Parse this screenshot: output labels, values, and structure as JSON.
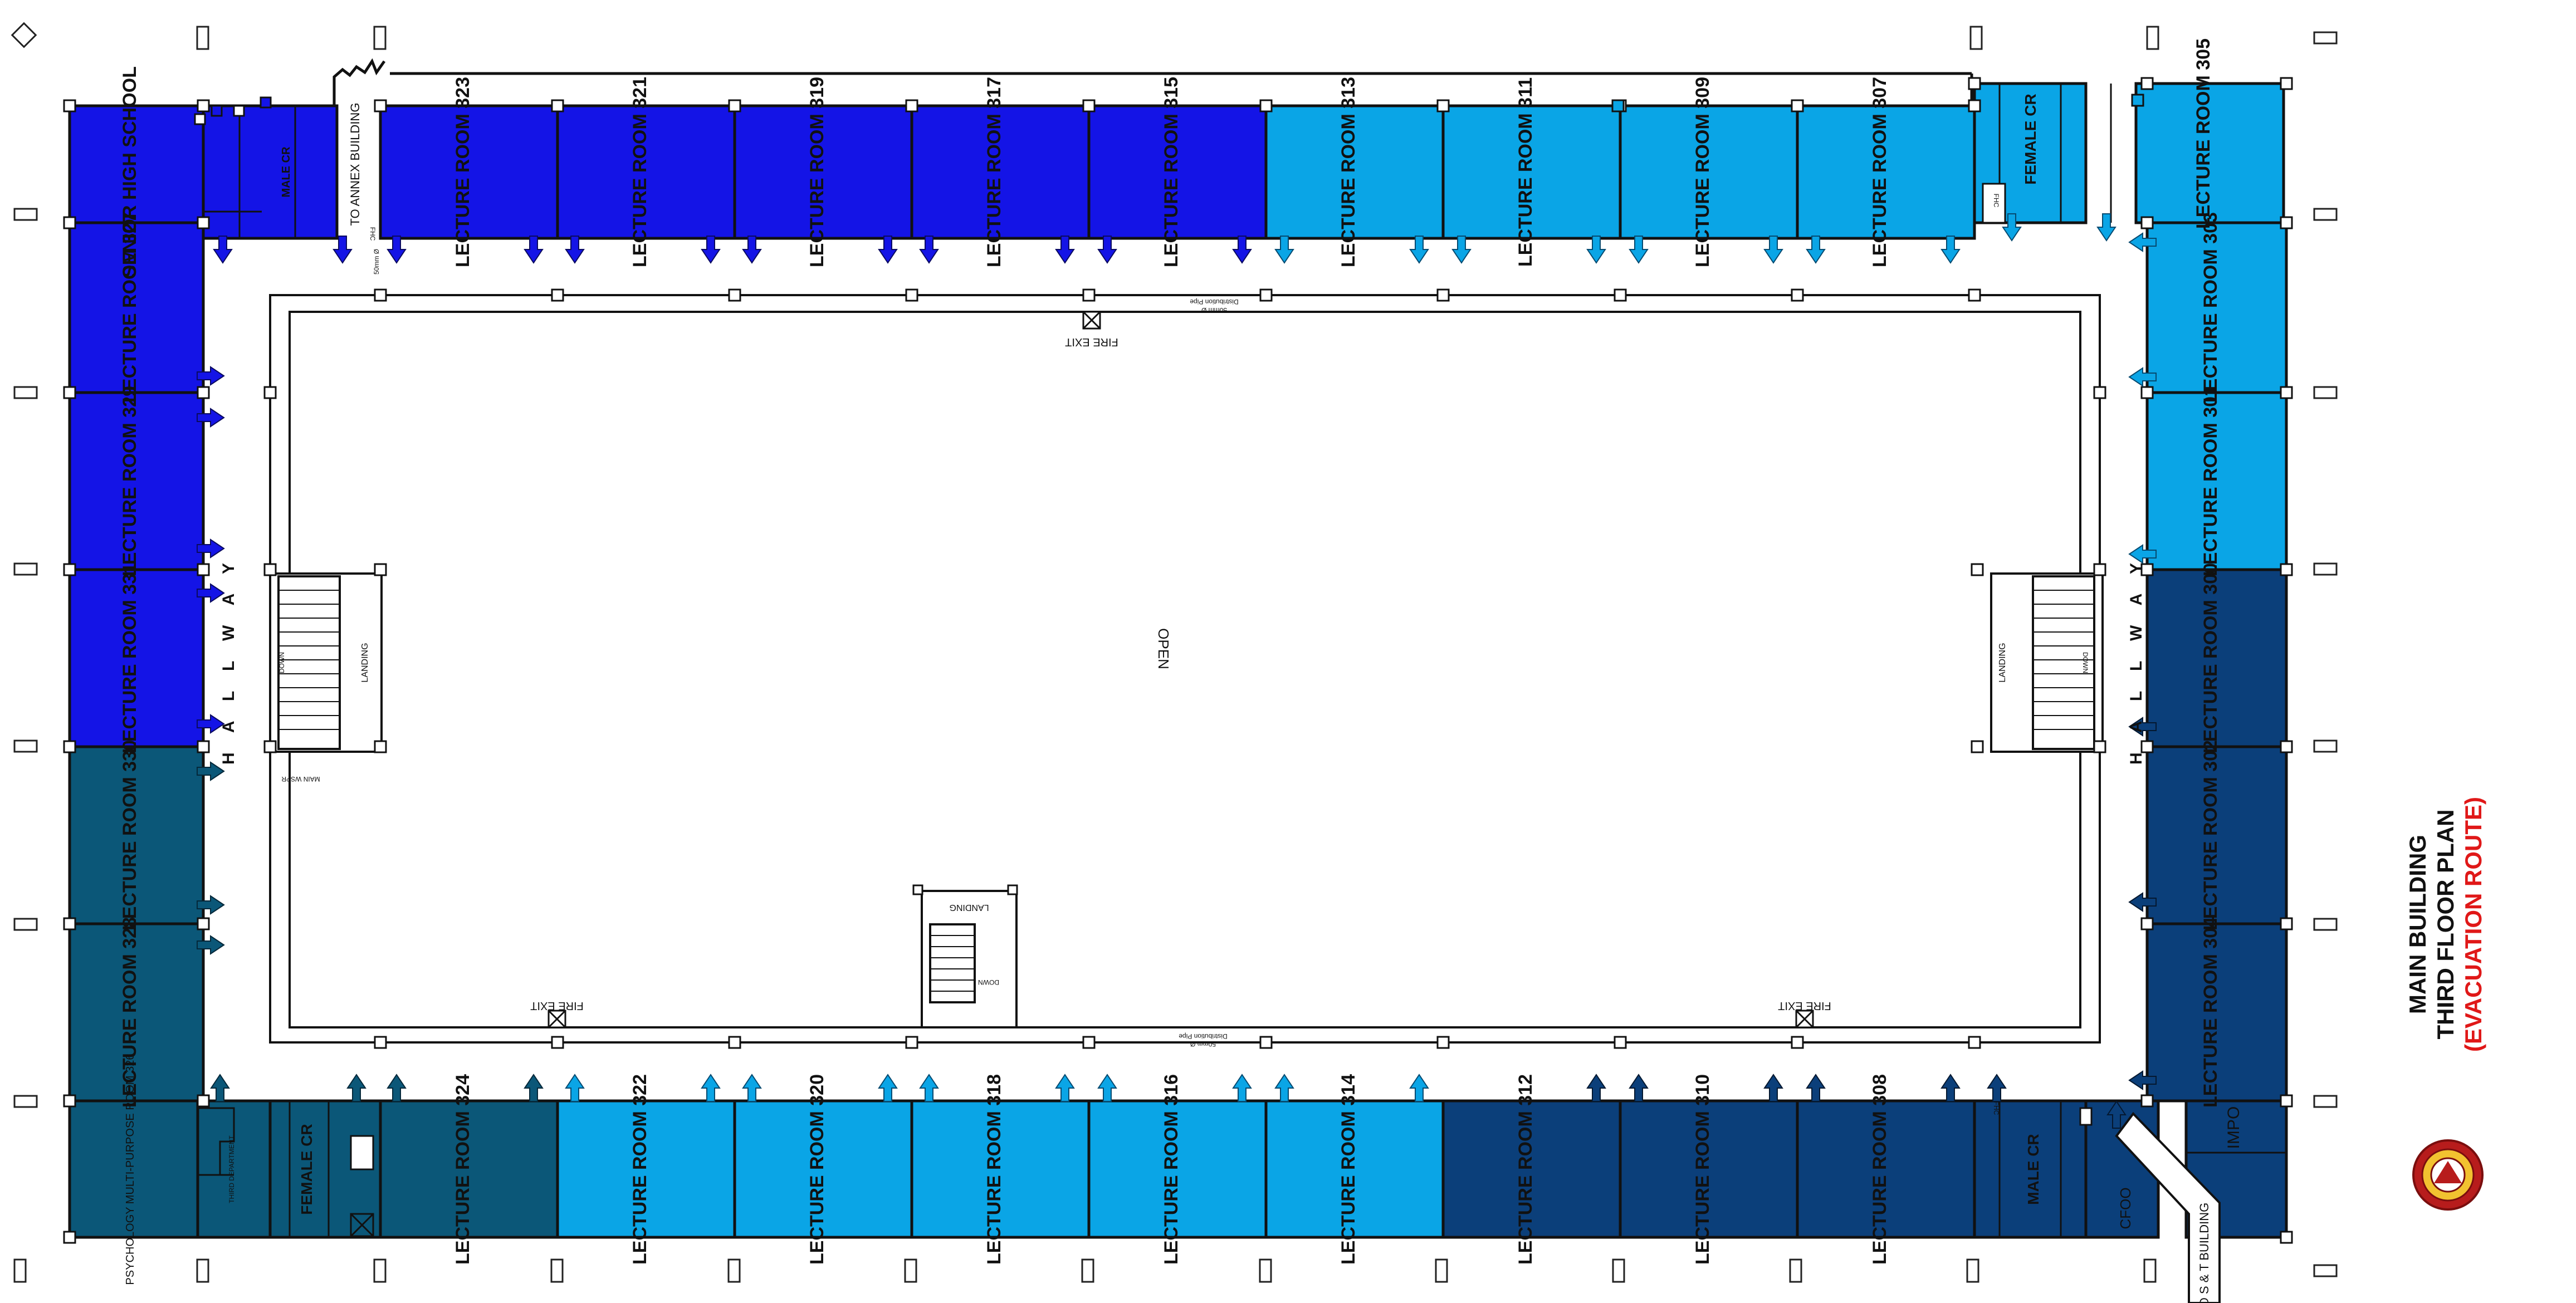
{
  "title": {
    "line1": "MAIN  BUILDING",
    "line2": "THIRD FLOOR PLAN",
    "line3": "(EVACUATION ROUTE)"
  },
  "colors": {
    "zone_a": "#1414e6",
    "zone_b": "#0aa5e6",
    "zone_c": "#0b3f7a",
    "zone_d": "#0b5778",
    "title_red": "#e01818",
    "seal_outer": "#b71c1c",
    "seal_inner": "#f2c230"
  },
  "labels": {
    "open": "OPEN",
    "hallway_west": "H A L L W A Y",
    "hallway_east": "H A L L W A Y",
    "to_annex": "TO ANNEX BUILDING",
    "to_st": "TO S & T BUILDING",
    "fire_exit_north": "FIRE EXIT",
    "fire_exit_sw": "FIRE EXIT",
    "fire_exit_se": "FIRE EXIT",
    "landing_west": "LANDING",
    "landing_east": "LANDING",
    "landing_south": "LANDING",
    "down_west": "DOWN",
    "down_east": "DOWN",
    "down_south": "DOWN",
    "main_wspr": "MAIN WSPR",
    "dist_pipe_n1": "50mm Ø",
    "dist_pipe_n2": "Distribution Pipe",
    "dist_pipe_s1": "Distribution Pipe",
    "dist_pipe_s2": "50mm Ø",
    "fhc_ne": "FHC",
    "fhc_se": "FHC",
    "fhc_nw": "FHC",
    "riser": "50mm Ø"
  },
  "rooms": {
    "r305": "LECTURE ROOM 305",
    "r307": "LECTURE ROOM 307",
    "r309": "LECTURE ROOM 309",
    "r311": "LECTURE ROOM 311",
    "r313": "LECTURE ROOM 313",
    "r315": "LECTURE ROOM 315",
    "r317": "LECTURE ROOM 317",
    "r319": "LECTURE ROOM 319",
    "r321": "LECTURE ROOM 321",
    "r323": "LECTURE ROOM 323",
    "shs": "SENIOR HIGH SCHOOL",
    "male_cr_nw": "MALE CR",
    "female_cr_ne": "FEMALE CR",
    "r327": "LECTURE ROOM 327",
    "r329": "LECTURE ROOM 329",
    "r331": "LECTURE ROOM 331",
    "r330": "LECTURE ROOM 330",
    "r328": "LECTURE ROOM 328",
    "r303": "LECTURE ROOM 303",
    "r301": "LECTURE ROOM 301",
    "r300": "LECTURE ROOM 300",
    "r302": "LECTURE ROOM 302",
    "r304": "LECTURE ROOM 304",
    "psych": "PSYCHOLOGY MULTI-PURPOSE ROOM 326",
    "dept": "THIRD DEPARTMENT",
    "female_cr_sw": "FEMALE CR",
    "r324": "LECTURE ROOM 324",
    "r322": "LECTURE ROOM 322",
    "r320": "LECTURE ROOM 320",
    "r318": "LECTURE ROOM 318",
    "r316": "LECTURE ROOM 316",
    "r314": "LECTURE ROOM 314",
    "r312": "LECTURE ROOM 312",
    "r310": "LECTURE ROOM 310",
    "r308": "LECTURE ROOM 308",
    "male_cr_se": "MALE CR",
    "cfoo": "CFOO",
    "impo": "IMPO"
  }
}
